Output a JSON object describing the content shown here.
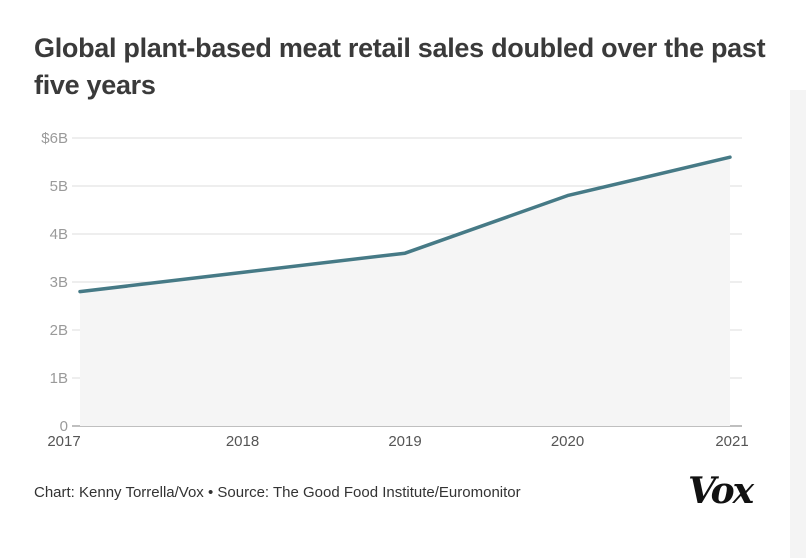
{
  "title": "Global plant-based meat retail sales doubled over the past five years",
  "credit": "Chart: Kenny Torrella/Vox • Source: The Good Food Institute/Euromonitor",
  "logo_text": "Vox",
  "colors": {
    "line": "#467a86",
    "area": "#f5f5f5",
    "grid": "#dddddd",
    "axis": "#999999"
  },
  "chart_data": {
    "type": "area",
    "title": "Global plant-based meat retail sales doubled over the past five years",
    "xlabel": "",
    "ylabel": "",
    "x": [
      "2017",
      "2018",
      "2019",
      "2020",
      "2021"
    ],
    "series": [
      {
        "values": [
          2.8,
          3.2,
          3.6,
          4.8,
          5.6
        ]
      }
    ],
    "ylim": [
      0,
      6
    ],
    "y_ticks": [
      0,
      1,
      2,
      3,
      4,
      5,
      6
    ],
    "y_tick_labels": [
      "0",
      "1B",
      "2B",
      "3B",
      "4B",
      "5B",
      "$6B"
    ],
    "grid": true
  }
}
